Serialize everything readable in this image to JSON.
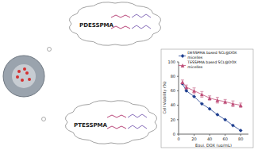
{
  "diagram": {
    "labels": [
      "PDESSPMA",
      "PTESSPMA"
    ]
  },
  "chart_data": {
    "type": "line",
    "x_label": "Equi. DOX (ug/mL)",
    "y_label": "Cell Viability (%)",
    "x": [
      5,
      10,
      20,
      30,
      40,
      50,
      60,
      70,
      80
    ],
    "series": [
      {
        "name": "DESSPMA based SCL@DOX micelles",
        "color": "#1f3f8f",
        "marker": "diamond",
        "values": [
          70,
          60,
          52,
          42,
          35,
          27,
          20,
          12,
          5
        ]
      },
      {
        "name": "TESSPMA based SCL@DOX micelles",
        "color": "#c0507a",
        "marker": "triangle",
        "values": [
          72,
          65,
          60,
          55,
          50,
          47,
          45,
          42,
          40
        ],
        "errors": [
          3,
          3,
          4,
          4,
          3,
          4,
          3,
          4,
          3
        ]
      }
    ],
    "xlim": [
      0,
      90
    ],
    "xticks": [
      0,
      20,
      40,
      60,
      80
    ],
    "ylim": [
      0,
      100
    ],
    "yticks": [
      0,
      20,
      40,
      60,
      80,
      100
    ],
    "grid": false,
    "legend": "top"
  }
}
